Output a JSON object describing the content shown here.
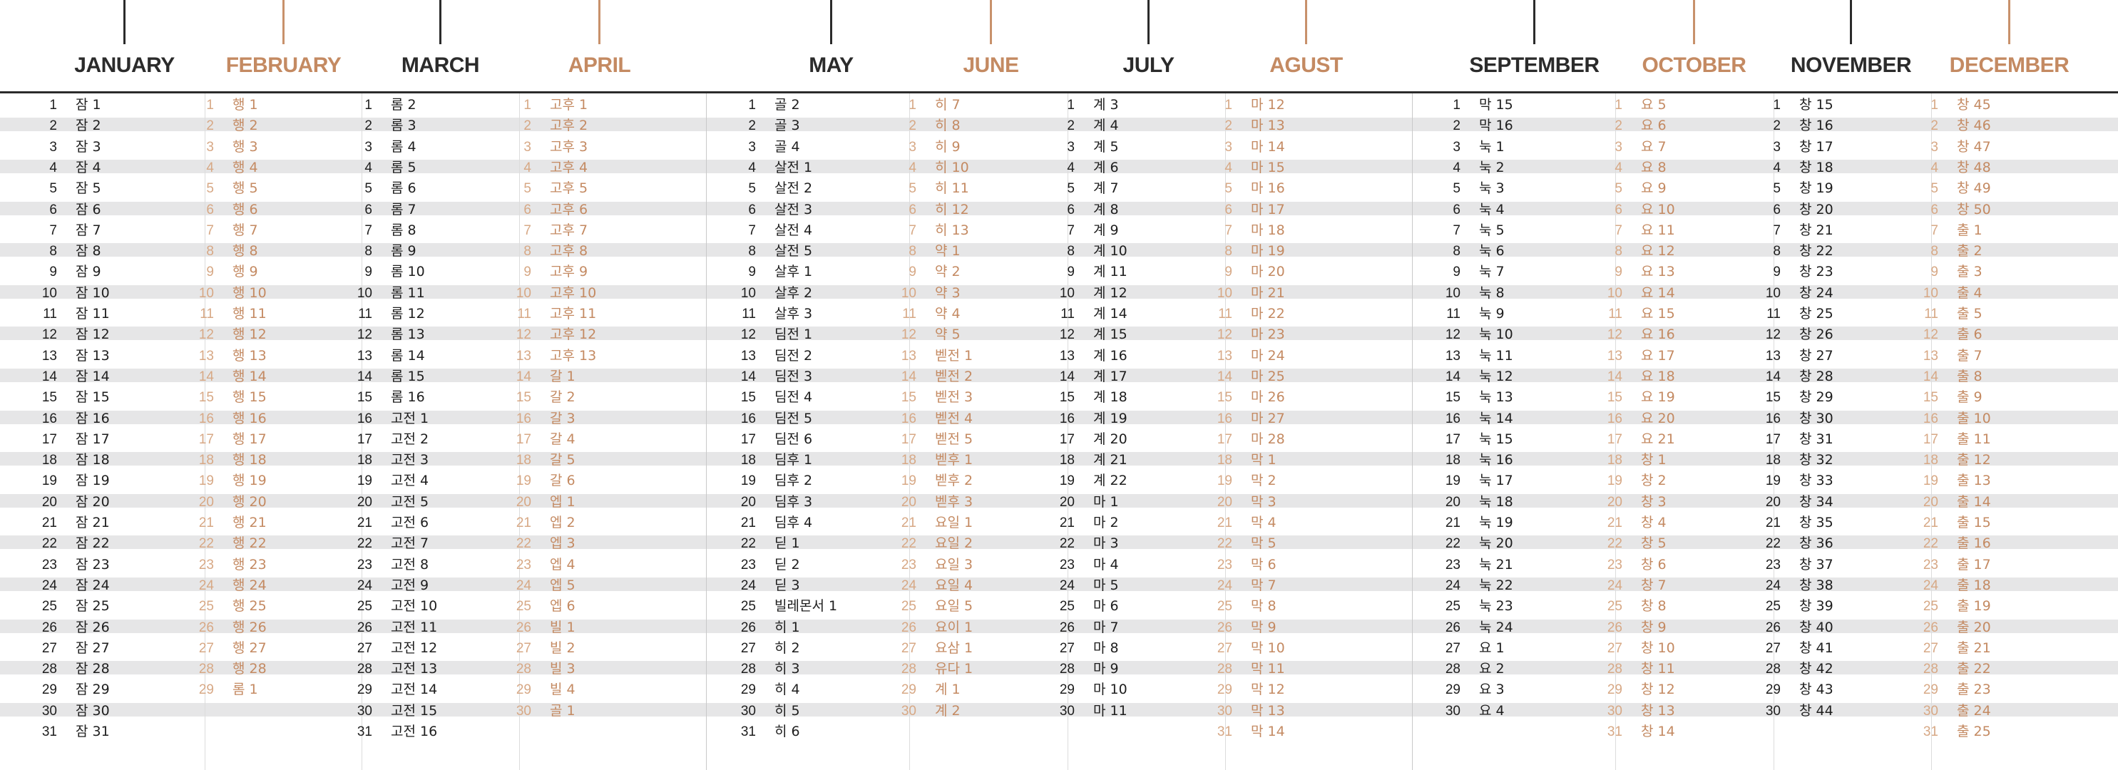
{
  "colors": {
    "dark_text": "#1e1e1e",
    "accent_text": "#c48a62",
    "row_gray": "#e6e6e7",
    "row_beige": "#eee6e0",
    "rule": "#2b2b2b"
  },
  "months": [
    {
      "name": "January",
      "tone": "dark",
      "days": [
        "잠 1",
        "잠 2",
        "잠 3",
        "잠 4",
        "잠 5",
        "잠 6",
        "잠 7",
        "잠 8",
        "잠 9",
        "잠 10",
        "잠 11",
        "잠 12",
        "잠 13",
        "잠 14",
        "잠 15",
        "잠 16",
        "잠 17",
        "잠 18",
        "잠 19",
        "잠 20",
        "잠 21",
        "잠 22",
        "잠 23",
        "잠 24",
        "잠 25",
        "잠 26",
        "잠 27",
        "잠 28",
        "잠 29",
        "잠 30",
        "잠 31"
      ]
    },
    {
      "name": "February",
      "tone": "light",
      "days": [
        "행 1",
        "행 2",
        "행 3",
        "행 4",
        "행 5",
        "행 6",
        "행 7",
        "행 8",
        "행 9",
        "행 10",
        "행 11",
        "행 12",
        "행 13",
        "행 14",
        "행 15",
        "행 16",
        "행 17",
        "행 18",
        "행 19",
        "행 20",
        "행 21",
        "행 22",
        "행 23",
        "행 24",
        "행 25",
        "행 26",
        "행 27",
        "행 28",
        "롬 1"
      ]
    },
    {
      "name": "March",
      "tone": "dark",
      "days": [
        "롬 2",
        "롬 3",
        "롬 4",
        "롬 5",
        "롬 6",
        "롬 7",
        "롬 8",
        "롬 9",
        "롬 10",
        "롬 11",
        "롬 12",
        "롬 13",
        "롬 14",
        "롬 15",
        "롬 16",
        "고전 1",
        "고전 2",
        "고전 3",
        "고전 4",
        "고전 5",
        "고전 6",
        "고전 7",
        "고전 8",
        "고전 9",
        "고전 10",
        "고전 11",
        "고전 12",
        "고전 13",
        "고전 14",
        "고전 15",
        "고전 16"
      ]
    },
    {
      "name": "April",
      "tone": "light",
      "days": [
        "고후 1",
        "고후 2",
        "고후 3",
        "고후 4",
        "고후 5",
        "고후 6",
        "고후 7",
        "고후 8",
        "고후 9",
        "고후 10",
        "고후 11",
        "고후 12",
        "고후 13",
        "갈 1",
        "갈 2",
        "갈 3",
        "갈 4",
        "갈 5",
        "갈 6",
        "엡 1",
        "엡 2",
        "엡 3",
        "엡 4",
        "엡 5",
        "엡 6",
        "빌 1",
        "빌 2",
        "빌 3",
        "빌 4",
        "골 1"
      ]
    },
    {
      "name": "May",
      "tone": "dark",
      "days": [
        "골 2",
        "골 3",
        "골 4",
        "살전 1",
        "살전 2",
        "살전 3",
        "살전 4",
        "살전 5",
        "살후 1",
        "살후 2",
        "살후 3",
        "딤전 1",
        "딤전 2",
        "딤전 3",
        "딤전 4",
        "딤전 5",
        "딤전 6",
        "딤후 1",
        "딤후 2",
        "딤후 3",
        "딤후 4",
        "딛 1",
        "딛 2",
        "딛 3",
        "빌레몬서 1",
        "히 1",
        "히 2",
        "히 3",
        "히 4",
        "히 5",
        "히 6"
      ]
    },
    {
      "name": "June",
      "tone": "light",
      "days": [
        "히 7",
        "히 8",
        "히 9",
        "히 10",
        "히 11",
        "히 12",
        "히 13",
        "약 1",
        "약 2",
        "약 3",
        "약 4",
        "약 5",
        "벧전 1",
        "벧전 2",
        "벧전 3",
        "벧전 4",
        "벧전 5",
        "벧후 1",
        "벧후 2",
        "벧후 3",
        "요일 1",
        "요일 2",
        "요일 3",
        "요일 4",
        "요일 5",
        "요이 1",
        "요삼 1",
        "유다 1",
        "계 1",
        "계 2"
      ]
    },
    {
      "name": "July",
      "tone": "dark",
      "days": [
        "계 3",
        "계 4",
        "계 5",
        "계 6",
        "계 7",
        "계 8",
        "계 9",
        "계 10",
        "계 11",
        "계 12",
        "계 14",
        "계 15",
        "계 16",
        "계 17",
        "계 18",
        "계 19",
        "계 20",
        "계 21",
        "계 22",
        "마 1",
        "마 2",
        "마 3",
        "마 4",
        "마 5",
        "마 6",
        "마 7",
        "마 8",
        "마 9",
        "마 10",
        "마 11"
      ]
    },
    {
      "name": "Agust",
      "tone": "light",
      "days": [
        "마 12",
        "마 13",
        "마 14",
        "마 15",
        "마 16",
        "마 17",
        "마 18",
        "마 19",
        "마 20",
        "마 21",
        "마 22",
        "마 23",
        "마 24",
        "마 25",
        "마 26",
        "마 27",
        "마 28",
        "막 1",
        "막 2",
        "막 3",
        "막 4",
        "막 5",
        "막 6",
        "막 7",
        "막 8",
        "막 9",
        "막 10",
        "막 11",
        "막 12",
        "막 13",
        "막 14"
      ]
    },
    {
      "name": "September",
      "tone": "dark",
      "days": [
        "막 15",
        "막 16",
        "눅 1",
        "눅 2",
        "눅 3",
        "눅 4",
        "눅 5",
        "눅 6",
        "눅 7",
        "눅 8",
        "눅 9",
        "눅 10",
        "눅 11",
        "눅 12",
        "눅 13",
        "눅 14",
        "눅 15",
        "눅 16",
        "눅 17",
        "눅 18",
        "눅 19",
        "눅 20",
        "눅 21",
        "눅 22",
        "눅 23",
        "눅 24",
        "요 1",
        "요 2",
        "요 3",
        "요 4"
      ]
    },
    {
      "name": "October",
      "tone": "light",
      "days": [
        "요 5",
        "요 6",
        "요 7",
        "요 8",
        "요 9",
        "요 10",
        "요 11",
        "요 12",
        "요 13",
        "요 14",
        "요 15",
        "요 16",
        "요 17",
        "요 18",
        "요 19",
        "요 20",
        "요 21",
        "창 1",
        "창 2",
        "창 3",
        "창 4",
        "창 5",
        "창 6",
        "창 7",
        "창 8",
        "창 9",
        "창 10",
        "창 11",
        "창 12",
        "창 13",
        "창 14"
      ]
    },
    {
      "name": "November",
      "tone": "dark",
      "days": [
        "창 15",
        "창 16",
        "창 17",
        "창 18",
        "창 19",
        "창 20",
        "창 21",
        "창 22",
        "창 23",
        "창 24",
        "창 25",
        "창 26",
        "창 27",
        "창 28",
        "창 29",
        "창 30",
        "창 31",
        "창 32",
        "창 33",
        "창 34",
        "창 35",
        "창 36",
        "창 37",
        "창 38",
        "창 39",
        "창 40",
        "창 41",
        "창 42",
        "창 43",
        "창 44"
      ]
    },
    {
      "name": "December",
      "tone": "light",
      "days": [
        "창 45",
        "창 46",
        "창 47",
        "창 48",
        "창 49",
        "창 50",
        "출 1",
        "출 2",
        "출 3",
        "출 4",
        "출 5",
        "출 6",
        "출 7",
        "출 8",
        "출 9",
        "출 10",
        "출 11",
        "출 12",
        "출 13",
        "출 14",
        "출 15",
        "출 16",
        "출 17",
        "출 18",
        "출 19",
        "출 20",
        "출 21",
        "출 22",
        "출 23",
        "출 24",
        "출 25"
      ]
    }
  ]
}
